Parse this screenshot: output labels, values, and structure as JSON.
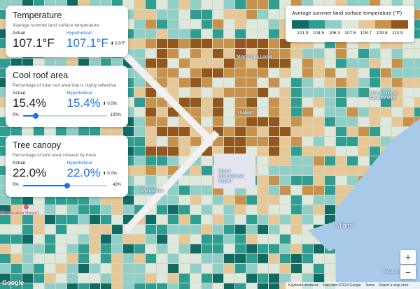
{
  "cards": {
    "temperature": {
      "title": "Temperature",
      "subtitle": "Average summer land surface temperature",
      "actual_label": "Actual",
      "hypothetical_label": "Hypothetical",
      "actual_value": "107.1°F",
      "hypothetical_value": "107.1°F",
      "delta": "⬇ 0.0°F"
    },
    "cool_roof": {
      "title": "Cool roof area",
      "subtitle": "Percentage of total roof area that is highly reflective",
      "actual_label": "Actual",
      "hypothetical_label": "Hypothetical",
      "actual_value": "15.4%",
      "hypothetical_value": "15.4%",
      "delta": "⬆ 0.0%",
      "slider_min": "0%",
      "slider_max": "100%",
      "slider_value": 0.154
    },
    "tree_canopy": {
      "title": "Tree canopy",
      "subtitle": "Percentage of land area covered by trees",
      "actual_label": "Actual",
      "hypothetical_label": "Hypothetical",
      "actual_value": "22.0%",
      "hypothetical_value": "22.0%",
      "delta": "⬆ 0.0%",
      "slider_min": "0%",
      "slider_max": "42%",
      "slider_value": 0.524
    }
  },
  "legend": {
    "title": "Average summer land surface temperature (°F)",
    "ticks": [
      "101.9",
      "104.5",
      "106.3",
      "107.5",
      "108.7",
      "109.8",
      "110.9"
    ],
    "colors": [
      "#0f6b63",
      "#2e9e93",
      "#8fcfc8",
      "#dfe8dc",
      "#e7c795",
      "#c9924c",
      "#93561c"
    ]
  },
  "map_labels": {
    "miami_opa_locka": "Miami-Opa Locka",
    "hialeah": "Hialeah",
    "miami_shores": "Miami Shores Country Club",
    "miami_international_airport": "Miami International Airport",
    "miccosukee": "Miccosukee Resort",
    "miami": "Miami",
    "sweetwater": "Sweetwater",
    "venetian": "Neptune Marina"
  },
  "zoom": {
    "in": "+",
    "out": "−"
  },
  "footer": {
    "shortcuts": "Keyboard shortcuts",
    "map_data": "Map data ©2024 Google",
    "terms": "Terms",
    "report": "Report a map error"
  },
  "brand": "Google"
}
